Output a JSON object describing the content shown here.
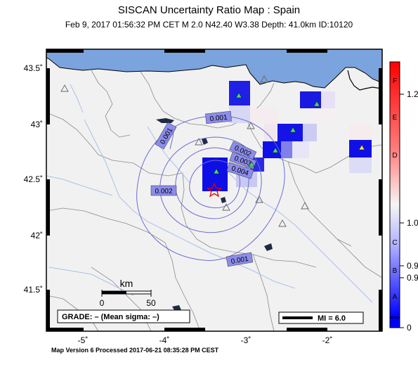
{
  "title": "SISCAN Uncertainty Ratio Map : Spain",
  "subtitle": "Feb  9, 2017 01:56:32 PM CET    M 2.0    N42.40 W3.38   Depth: 41.0km    ID:10120",
  "footer": "Map Version 6 Processed 2017-06-21 08:35:28 PM CEST",
  "axes": {
    "lon_labels": [
      "-5˚",
      "-4˚",
      "-3˚",
      "-2˚"
    ],
    "lat_labels": [
      "43.5˚",
      "43˚",
      "42.5˚",
      "42˚",
      "41.5˚"
    ]
  },
  "scale_bar": {
    "unit": "km",
    "start": "0",
    "end": "50"
  },
  "grade_box": "GRADE: – (Mean sigma: –)",
  "mi_legend": "MI = 6.0",
  "contours": [
    "0.001",
    "0.001",
    "0.002",
    "0.002",
    "0.003",
    "0.004",
    "0.001"
  ],
  "colorbar": {
    "ticks": [
      "1.2",
      "1.0",
      "0.9",
      "0.9",
      "0"
    ],
    "grades": [
      "F",
      "E",
      "D",
      "C",
      "B",
      "A"
    ],
    "colors": {
      "high": "#ff0000",
      "mid": "#f5f5f5",
      "low": "#0000ff"
    }
  },
  "colors": {
    "land": "#f1f1f1",
    "sea": "#7ba3dd",
    "contour": "#6c6cd6",
    "river": "#a9c2e6",
    "epicenter": "#e00000"
  },
  "icons": {
    "epicenter": "star-icon",
    "station_used": "green-triangle-icon",
    "station_other": "gray-triangle-icon"
  }
}
